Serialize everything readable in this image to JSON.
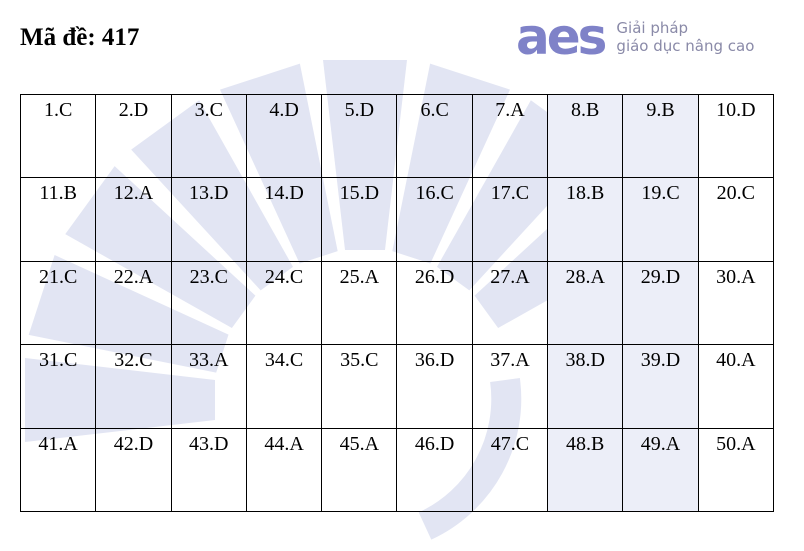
{
  "header": {
    "title": "Mã đề: 417",
    "logo": {
      "mark": "aes",
      "line1": "Giải pháp",
      "line2": "giáo dục nâng cao"
    }
  },
  "table": {
    "rows": [
      [
        "1.C",
        "2.D",
        "3.C",
        "4.D",
        "5.D",
        "6.C",
        "7.A",
        "8.B",
        "9.B",
        "10.D"
      ],
      [
        "11.B",
        "12.A",
        "13.D",
        "14.D",
        "15.D",
        "16.C",
        "17.C",
        "18.B",
        "19.C",
        "20.C"
      ],
      [
        "21.C",
        "22.A",
        "23.C",
        "24.C",
        "25.A",
        "26.D",
        "27.A",
        "28.A",
        "29.D",
        "30.A"
      ],
      [
        "31.C",
        "32.C",
        "33.A",
        "34.C",
        "35.C",
        "36.D",
        "37.A",
        "38.D",
        "39.D",
        "40.A"
      ],
      [
        "41.A",
        "42.D",
        "43.D",
        "44.A",
        "45.A",
        "46.D",
        "47.C",
        "48.B",
        "49.A",
        "50.A"
      ]
    ]
  }
}
